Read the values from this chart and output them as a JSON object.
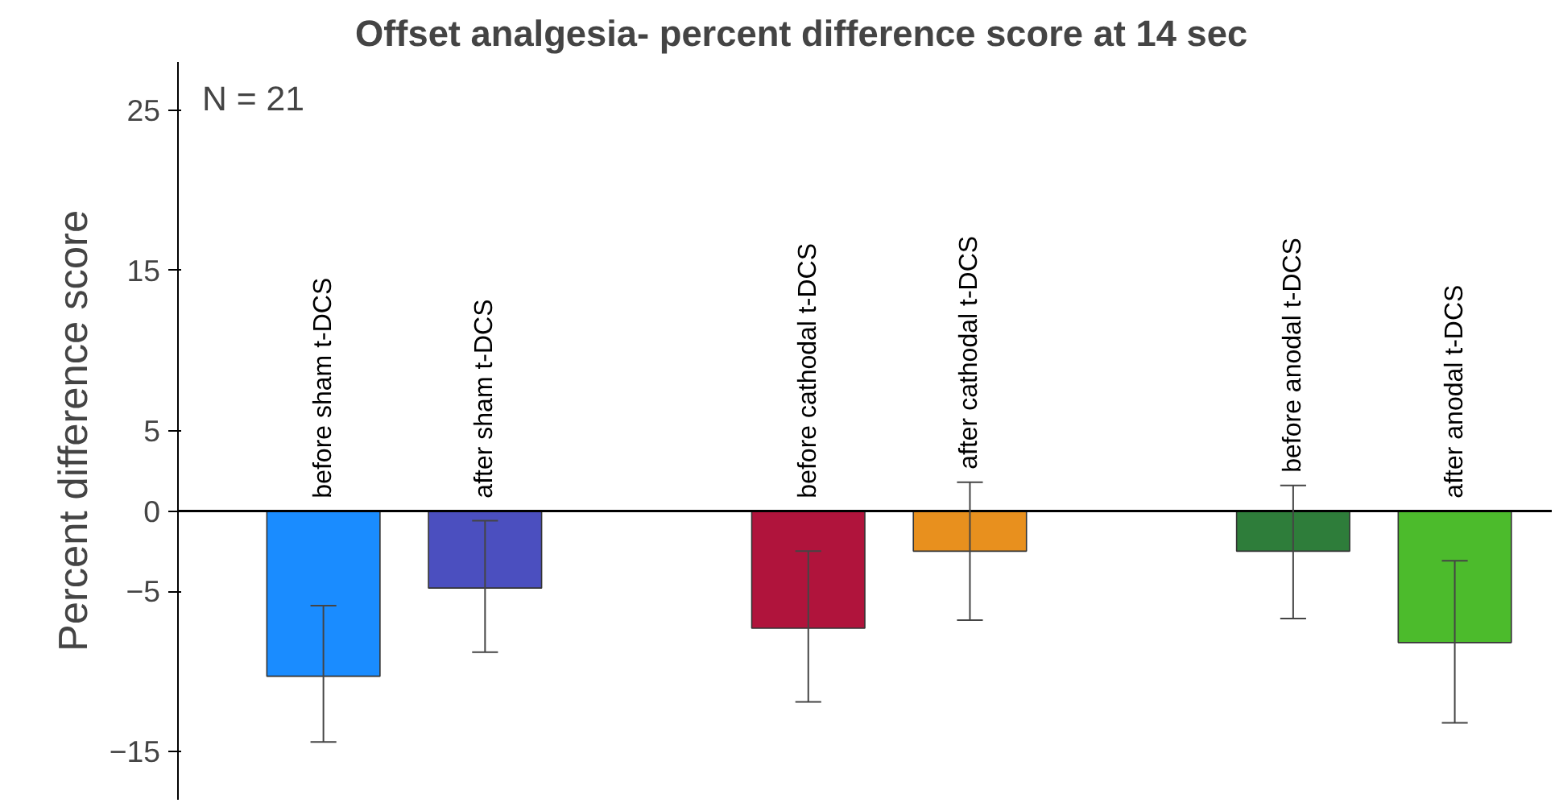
{
  "chart_data": {
    "type": "bar",
    "title": "Offset analgesia- percent difference score at 14 sec",
    "ylabel": "Percent difference score",
    "categories": [
      "before sham t-DCS",
      "after sham t-DCS",
      null,
      "before cathodal t-DCS",
      "after cathodal t-DCS",
      null,
      "before anodal t-DCS",
      "after anodal t-DCS"
    ],
    "values": [
      -10.3,
      -4.8,
      null,
      -7.3,
      -2.5,
      null,
      -2.5,
      -8.2
    ],
    "colors": [
      "#1a8cff",
      "#4b4fbf",
      null,
      "#b0143c",
      "#e8901e",
      null,
      "#2e7d3a",
      "#4cbb2c"
    ],
    "errors": [
      [
        -14.4,
        -5.9
      ],
      [
        -8.8,
        -0.6
      ],
      null,
      [
        -11.9,
        -2.5
      ],
      [
        -6.8,
        1.8
      ],
      null,
      [
        -6.7,
        1.6
      ],
      [
        -13.2,
        -3.1
      ]
    ],
    "ylim": [
      -18,
      28
    ],
    "yticks": [
      25,
      15,
      5,
      0,
      -5,
      -15
    ],
    "grid": false,
    "annotations": [
      "N = 21"
    ]
  }
}
